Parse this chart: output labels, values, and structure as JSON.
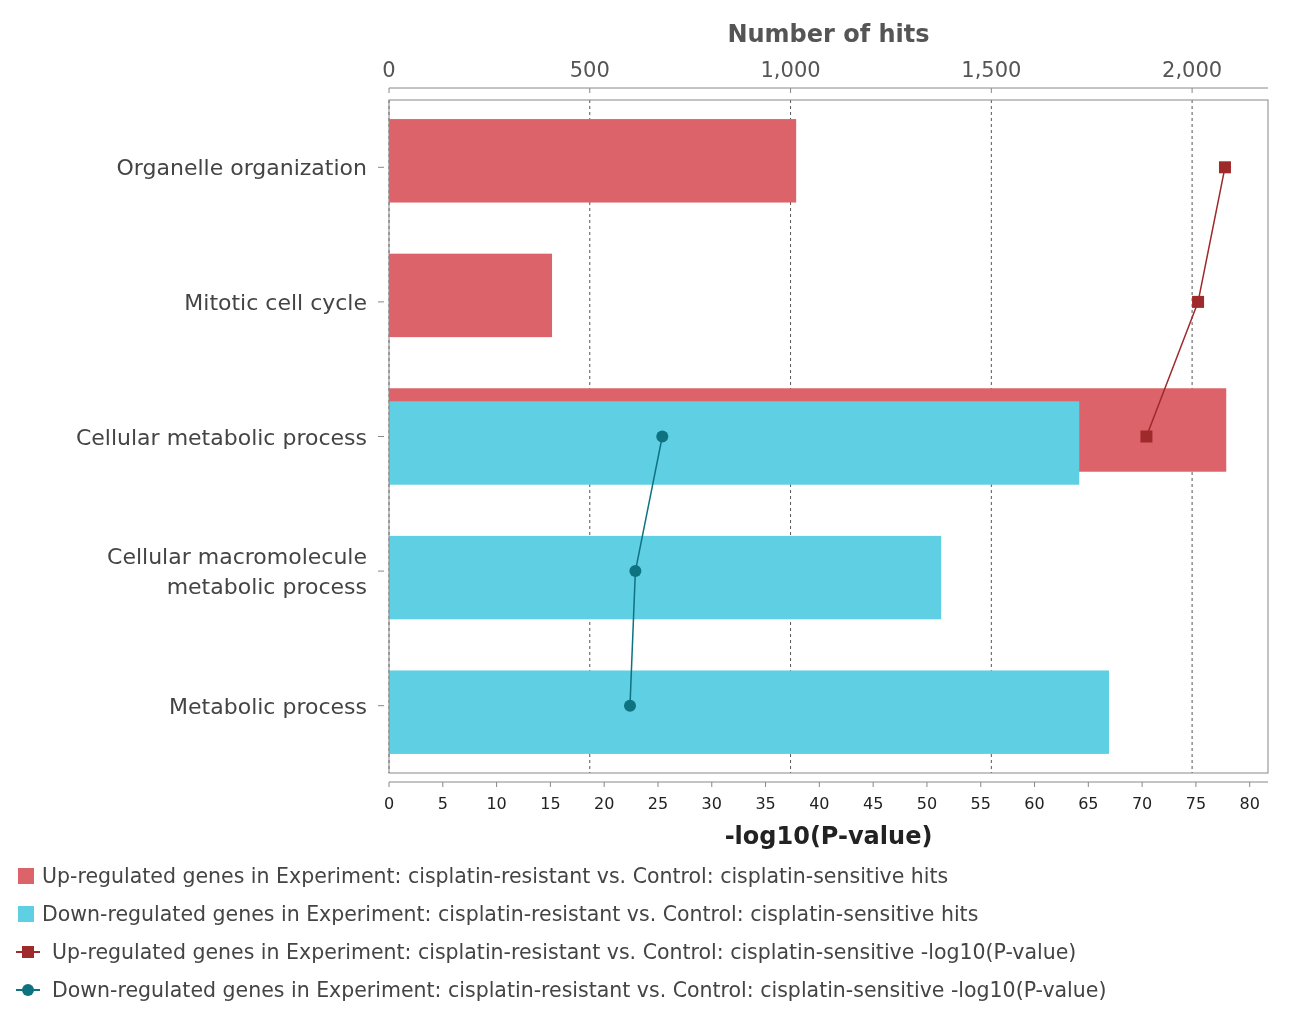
{
  "chart_data": {
    "type": "bar",
    "orientation": "horizontal",
    "x2label": "Number of hits",
    "xlabel": "-log10(P-value)",
    "categories": [
      "Organelle organization",
      "Mitotic cell cycle",
      "Cellular metabolic process",
      "Cellular macromolecule metabolic process",
      "Metabolic process"
    ],
    "series": [
      {
        "name": "Up-regulated genes in Experiment: cisplatin-resistant vs. Control: cisplatin-sensitive hits",
        "axis": "x2",
        "color": "#dc6369",
        "values": [
          1014,
          406,
          2085,
          null,
          null
        ]
      },
      {
        "name": "Down-regulated genes in Experiment: cisplatin-resistant vs. Control: cisplatin-sensitive hits",
        "axis": "x2",
        "color": "#5fd0e3",
        "values": [
          null,
          null,
          1719,
          1375,
          1793
        ]
      },
      {
        "name": "Up-regulated genes in Experiment: cisplatin-resistant vs. Control: cisplatin-sensitive -log10(P-value)",
        "type": "line",
        "marker": "square",
        "color": "#9e2a2b",
        "values": [
          77.7,
          75.2,
          70.4,
          null,
          null
        ]
      },
      {
        "name": "Down-regulated genes in Experiment: cisplatin-resistant vs. Control: cisplatin-sensitive -log10(P-value)",
        "type": "line",
        "marker": "circle",
        "color": "#0e7280",
        "values": [
          null,
          null,
          25.4,
          22.9,
          22.4
        ]
      }
    ],
    "xlim": [
      0,
      81.7
    ],
    "xticks": [
      0,
      5,
      10,
      15,
      20,
      25,
      30,
      35,
      40,
      45,
      50,
      55,
      60,
      65,
      70,
      75,
      80
    ],
    "x2lim": [
      0,
      2189
    ],
    "x2ticks": [
      0,
      500,
      {
        "value": 1000,
        "label": "1,000"
      },
      {
        "value": 1500,
        "label": "1,500"
      },
      {
        "value": 2000,
        "label": "2,000"
      }
    ],
    "grid": "x",
    "legend": "bottom"
  }
}
